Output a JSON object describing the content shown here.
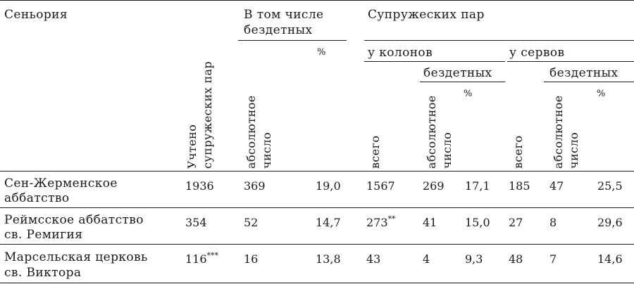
{
  "headers": {
    "seigneury": "Сеньория",
    "incl_childless_line1": "В том числе",
    "incl_childless_line2": "бездетных",
    "married_couples": "Супружеских пар",
    "percent": "%",
    "at_coloni": "у колонов",
    "at_serfs": "у сервов",
    "childless": "бездетных",
    "counted_line1": "Учтено",
    "counted_line2": "супружеских пар",
    "absolute_line1": "абсолютное",
    "absolute_line2": "число",
    "total": "всего"
  },
  "rows": [
    {
      "name_line1": "Сен-Жерменское",
      "name_line2": "аббатство",
      "counted": "1936",
      "childless_abs": "369",
      "childless_pct": "19,0",
      "coloni_total": "1567",
      "coloni_childless_abs": "269",
      "coloni_childless_pct": "17,1",
      "serfs_total": "185",
      "serfs_childless_abs": "47",
      "serfs_childless_pct": "25,5"
    },
    {
      "name_line1": "Реймсское аббатство",
      "name_line2": "св. Ремигия",
      "counted": "354",
      "childless_abs": "52",
      "childless_pct": "14,7",
      "coloni_total": "273",
      "coloni_total_note": "**",
      "coloni_childless_abs": "41",
      "coloni_childless_pct": "15,0",
      "serfs_total": "27",
      "serfs_childless_abs": "8",
      "serfs_childless_pct": "29,6"
    },
    {
      "name_line1": "Марсельская церковь",
      "name_line2": "св. Виктора",
      "counted": "116",
      "counted_note": "***",
      "childless_abs": "16",
      "childless_pct": "13,8",
      "coloni_total": "43",
      "coloni_childless_abs": "4",
      "coloni_childless_pct": "9,3",
      "serfs_total": "48",
      "serfs_childless_abs": "7",
      "serfs_childless_pct": "14,6"
    }
  ]
}
